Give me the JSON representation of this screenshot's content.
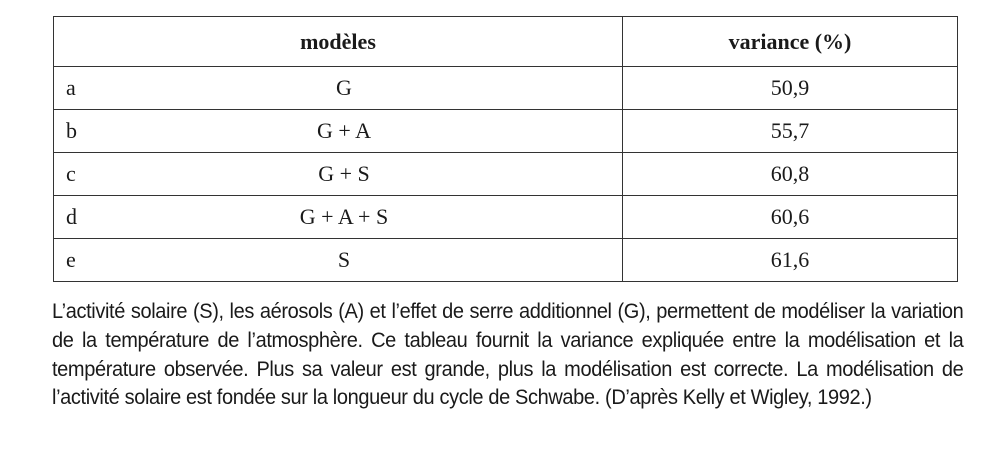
{
  "table": {
    "headers": [
      "modèles",
      "variance (%)"
    ],
    "rows": [
      {
        "label": "a",
        "model": "G",
        "variance": "50,9"
      },
      {
        "label": "b",
        "model": "G + A",
        "variance": "55,7"
      },
      {
        "label": "c",
        "model": "G + S",
        "variance": "60,8"
      },
      {
        "label": "d",
        "model": "G + A + S",
        "variance": "60,6"
      },
      {
        "label": "e",
        "model": "S",
        "variance": "61,6"
      }
    ]
  },
  "caption": "L’activité solaire (S), les aérosols (A) et l’effet de serre additionnel (G), permettent de modéliser la variation de la température de l’atmosphère. Ce tableau fournit la variance expliquée entre la modélisation et la température observée. Plus sa valeur est grande, plus la modélisation est correcte. La modélisation de l’activité solaire est fondée sur la longueur du cycle de Schwabe. (D’après Kelly et Wigley, 1992.)"
}
